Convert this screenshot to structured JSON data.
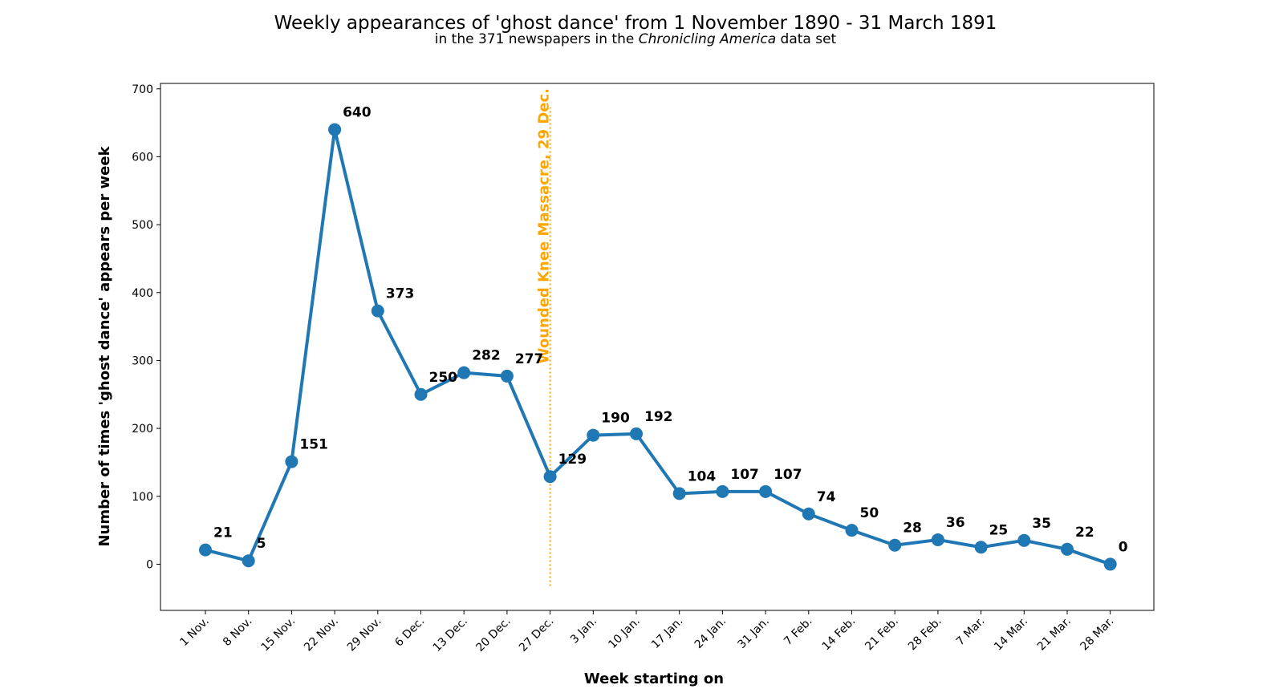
{
  "chart_data": {
    "type": "line",
    "title": "Weekly appearances of 'ghost dance' from 1 November 1890 - 31 March 1891",
    "subtitle": {
      "before": "in the 371 newspapers in the ",
      "italic": "Chronicling America",
      "after": " data set"
    },
    "xlabel": "Week starting on",
    "ylabel": "Number of times 'ghost dance' appears per week",
    "ylim": [
      -68,
      708
    ],
    "yticks": [
      0,
      100,
      200,
      300,
      400,
      500,
      600,
      700
    ],
    "grid": false,
    "categories": [
      "1 Nov.",
      "8 Nov.",
      "15 Nov.",
      "22 Nov.",
      "29 Nov.",
      "6 Dec.",
      "13 Dec.",
      "20 Dec.",
      "27 Dec.",
      "3 Jan.",
      "10 Jan.",
      "17 Jan.",
      "24 Jan.",
      "31 Jan.",
      "7 Feb.",
      "14 Feb.",
      "21 Feb.",
      "28 Feb.",
      "7 Mar.",
      "14 Mar.",
      "21 Mar.",
      "28 Mar."
    ],
    "series": [
      {
        "values": [
          21,
          5,
          151,
          640,
          373,
          250,
          282,
          277,
          129,
          190,
          192,
          104,
          107,
          107,
          74,
          50,
          28,
          36,
          25,
          35,
          22,
          0
        ],
        "color": "#1f77b4"
      }
    ],
    "annotation": {
      "text": "Wounded Knee Massacre, 29 Dec.",
      "category": "27 Dec.",
      "color": "#ffa500"
    }
  }
}
